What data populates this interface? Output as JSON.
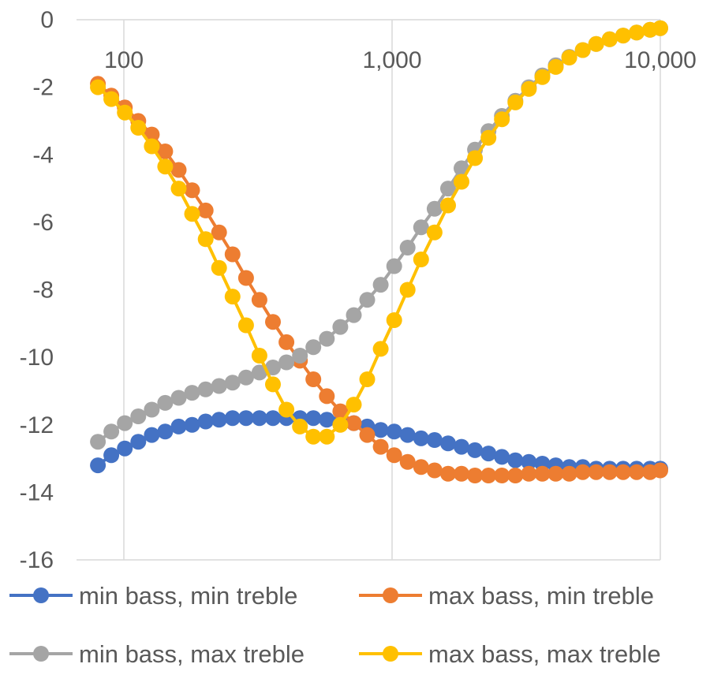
{
  "chart_data": {
    "type": "line",
    "title": "",
    "xlabel": "",
    "ylabel": "",
    "x_scale": "log",
    "xlim": [
      80,
      10000
    ],
    "ylim": [
      -16,
      0
    ],
    "x_ticks": [
      100,
      1000,
      10000
    ],
    "x_tick_labels": [
      "100",
      "1,000",
      "10,000"
    ],
    "y_ticks": [
      0,
      -2,
      -4,
      -6,
      -8,
      -10,
      -12,
      -14,
      -16
    ],
    "y_tick_labels": [
      "0",
      "-2",
      "-4",
      "-6",
      "-8",
      "-10",
      "-12",
      "-14",
      "-16"
    ],
    "x_axis_position": "top",
    "grid": "vertical",
    "legend_position": "bottom",
    "x": [
      80,
      89.8,
      100.8,
      113.2,
      127.1,
      142.6,
      160.1,
      179.7,
      201.8,
      226.5,
      254.3,
      285.4,
      320.4,
      359.7,
      403.8,
      453.3,
      508.8,
      571.2,
      641.2,
      719.8,
      808,
      907,
      1018.2,
      1143,
      1283.1,
      1440.4,
      1616.9,
      1815.1,
      2037.5,
      2287.3,
      2567.6,
      2882.3,
      3235.6,
      3632.2,
      4077.4,
      4577.2,
      5138.2,
      5768,
      6475,
      7268.6,
      8159.5,
      9159.6,
      10000
    ],
    "series": [
      {
        "name": "min bass, min treble",
        "color": "#4472c4",
        "values": [
          -13.2,
          -12.9,
          -12.7,
          -12.5,
          -12.3,
          -12.2,
          -12.05,
          -12.0,
          -11.9,
          -11.85,
          -11.8,
          -11.8,
          -11.8,
          -11.8,
          -11.8,
          -11.8,
          -11.8,
          -11.85,
          -11.9,
          -11.95,
          -12.05,
          -12.15,
          -12.2,
          -12.3,
          -12.4,
          -12.45,
          -12.55,
          -12.65,
          -12.75,
          -12.85,
          -12.95,
          -13.05,
          -13.1,
          -13.15,
          -13.2,
          -13.25,
          -13.25,
          -13.3,
          -13.3,
          -13.3,
          -13.3,
          -13.3,
          -13.3
        ]
      },
      {
        "name": "max bass, min treble",
        "color": "#ed7d31",
        "values": [
          -1.9,
          -2.25,
          -2.6,
          -3.0,
          -3.4,
          -3.9,
          -4.45,
          -5.05,
          -5.65,
          -6.3,
          -6.95,
          -7.65,
          -8.3,
          -8.95,
          -9.55,
          -10.1,
          -10.65,
          -11.15,
          -11.6,
          -11.95,
          -12.3,
          -12.65,
          -12.9,
          -13.1,
          -13.25,
          -13.35,
          -13.45,
          -13.45,
          -13.5,
          -13.5,
          -13.5,
          -13.5,
          -13.45,
          -13.45,
          -13.45,
          -13.45,
          -13.4,
          -13.4,
          -13.4,
          -13.4,
          -13.4,
          -13.4,
          -13.35
        ]
      },
      {
        "name": "min bass, max treble",
        "color": "#a5a5a5",
        "values": [
          -12.5,
          -12.2,
          -11.95,
          -11.75,
          -11.55,
          -11.35,
          -11.2,
          -11.05,
          -10.95,
          -10.85,
          -10.75,
          -10.6,
          -10.45,
          -10.3,
          -10.15,
          -9.95,
          -9.7,
          -9.45,
          -9.1,
          -8.75,
          -8.3,
          -7.85,
          -7.3,
          -6.75,
          -6.15,
          -5.6,
          -5.0,
          -4.4,
          -3.85,
          -3.3,
          -2.85,
          -2.4,
          -2.0,
          -1.65,
          -1.35,
          -1.1,
          -0.9,
          -0.72,
          -0.58,
          -0.47,
          -0.38,
          -0.3,
          -0.25
        ]
      },
      {
        "name": "max bass, max treble",
        "color": "#ffc000",
        "values": [
          -2.0,
          -2.35,
          -2.75,
          -3.2,
          -3.75,
          -4.35,
          -5.0,
          -5.75,
          -6.5,
          -7.35,
          -8.2,
          -9.05,
          -9.95,
          -10.8,
          -11.55,
          -12.05,
          -12.35,
          -12.35,
          -12.0,
          -11.4,
          -10.65,
          -9.75,
          -8.9,
          -8.0,
          -7.1,
          -6.3,
          -5.5,
          -4.8,
          -4.1,
          -3.5,
          -2.95,
          -2.45,
          -2.05,
          -1.7,
          -1.4,
          -1.12,
          -0.9,
          -0.72,
          -0.58,
          -0.47,
          -0.38,
          -0.3,
          -0.25
        ]
      }
    ]
  }
}
